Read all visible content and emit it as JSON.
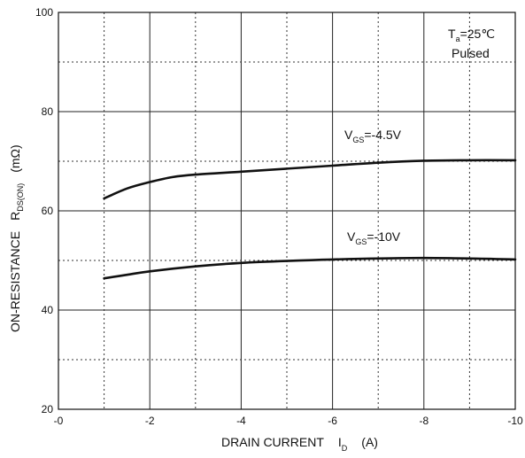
{
  "chart_data": {
    "type": "line",
    "xlabel": "DRAIN CURRENT",
    "xlabel_symbol": "I",
    "xlabel_subscript": "D",
    "xlabel_unit": "(A)",
    "ylabel": "ON-RESISTANCE",
    "ylabel_symbol": "R",
    "ylabel_subscript": "DS(ON)",
    "ylabel_unit": "(mΩ)",
    "xlim": [
      0,
      -10
    ],
    "ylim": [
      20,
      100
    ],
    "x_ticks": [
      0,
      -2,
      -4,
      -6,
      -8,
      -10
    ],
    "x_tick_labels": [
      "-0",
      "-2",
      "-4",
      "-6",
      "-8",
      "-10"
    ],
    "y_ticks": [
      20,
      40,
      60,
      80,
      100
    ],
    "y_tick_labels": [
      "20",
      "40",
      "60",
      "80",
      "100"
    ],
    "grid": true,
    "annotation": {
      "line1_prefix": "T",
      "line1_sub": "a",
      "line1_suffix": "=25℃",
      "line2": "Pulsed"
    },
    "series": [
      {
        "name": "VGS=-4.5V",
        "label_prefix": "V",
        "label_sub": "GS",
        "label_suffix": "=-4.5V",
        "x": [
          -1,
          -1.5,
          -2,
          -2.5,
          -3,
          -4,
          -5,
          -6,
          -7,
          -8,
          -9,
          -10
        ],
        "y": [
          62.5,
          64.5,
          65.8,
          66.8,
          67.3,
          67.9,
          68.5,
          69.1,
          69.7,
          70.1,
          70.2,
          70.2
        ]
      },
      {
        "name": "VGS=-10V",
        "label_prefix": "V",
        "label_sub": "GS",
        "label_suffix": "=-10V",
        "x": [
          -1,
          -1.5,
          -2,
          -3,
          -4,
          -5,
          -6,
          -7,
          -8,
          -9,
          -10
        ],
        "y": [
          46.4,
          47.1,
          47.8,
          48.8,
          49.5,
          49.9,
          50.2,
          50.4,
          50.5,
          50.4,
          50.2
        ]
      }
    ]
  }
}
